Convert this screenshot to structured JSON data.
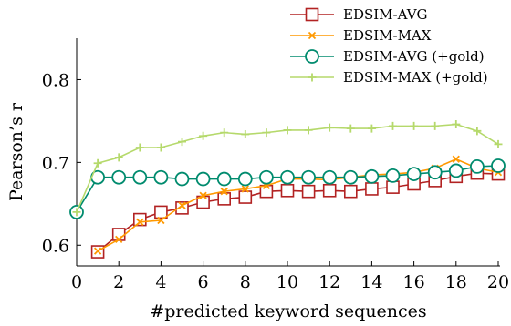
{
  "chart_data": {
    "type": "line",
    "xlabel": "#predicted keyword sequences",
    "ylabel": "Pearson’s r",
    "xlim": [
      0,
      20
    ],
    "ylim": [
      0.575,
      0.85
    ],
    "x_ticks": [
      "0",
      "2",
      "4",
      "6",
      "8",
      "10",
      "12",
      "14",
      "16",
      "18",
      "20"
    ],
    "y_ticks": [
      "0.6",
      "0.7",
      "0.8"
    ],
    "legend_position": "top-right",
    "grid": false,
    "series": [
      {
        "name": "EDSIM-AVG",
        "color": "#b22222",
        "marker": "square",
        "x": [
          1,
          2,
          3,
          4,
          5,
          6,
          7,
          8,
          9,
          10,
          11,
          12,
          13,
          14,
          15,
          16,
          17,
          18,
          19,
          20
        ],
        "values": [
          0.592,
          0.613,
          0.631,
          0.64,
          0.645,
          0.652,
          0.656,
          0.658,
          0.665,
          0.666,
          0.665,
          0.666,
          0.665,
          0.668,
          0.67,
          0.674,
          0.678,
          0.683,
          0.687,
          0.686
        ]
      },
      {
        "name": "EDSIM-MAX",
        "color": "#ff9900",
        "marker": "x",
        "x": [
          1,
          2,
          3,
          4,
          5,
          6,
          7,
          8,
          9,
          10,
          11,
          12,
          13,
          14,
          15,
          16,
          17,
          18,
          19,
          20
        ],
        "values": [
          0.593,
          0.607,
          0.628,
          0.63,
          0.648,
          0.66,
          0.665,
          0.668,
          0.672,
          0.68,
          0.68,
          0.679,
          0.682,
          0.685,
          0.686,
          0.688,
          0.693,
          0.704,
          0.693,
          0.688
        ]
      },
      {
        "name": "EDSIM-AVG (+gold)",
        "color": "#008b6e",
        "marker": "circle",
        "x": [
          0,
          1,
          2,
          3,
          4,
          5,
          6,
          7,
          8,
          9,
          10,
          11,
          12,
          13,
          14,
          15,
          16,
          17,
          18,
          19,
          20
        ],
        "values": [
          0.64,
          0.682,
          0.682,
          0.682,
          0.682,
          0.68,
          0.68,
          0.68,
          0.68,
          0.682,
          0.682,
          0.682,
          0.682,
          0.682,
          0.683,
          0.684,
          0.686,
          0.688,
          0.69,
          0.695,
          0.696
        ]
      },
      {
        "name": "EDSIM-MAX (+gold)",
        "color": "#b5d96b",
        "marker": "plus",
        "x": [
          0,
          1,
          2,
          3,
          4,
          5,
          6,
          7,
          8,
          9,
          10,
          11,
          12,
          13,
          14,
          15,
          16,
          17,
          18,
          19,
          20
        ],
        "values": [
          0.64,
          0.699,
          0.706,
          0.718,
          0.718,
          0.725,
          0.732,
          0.736,
          0.734,
          0.736,
          0.739,
          0.739,
          0.742,
          0.741,
          0.741,
          0.744,
          0.744,
          0.744,
          0.746,
          0.738,
          0.722
        ]
      }
    ]
  }
}
